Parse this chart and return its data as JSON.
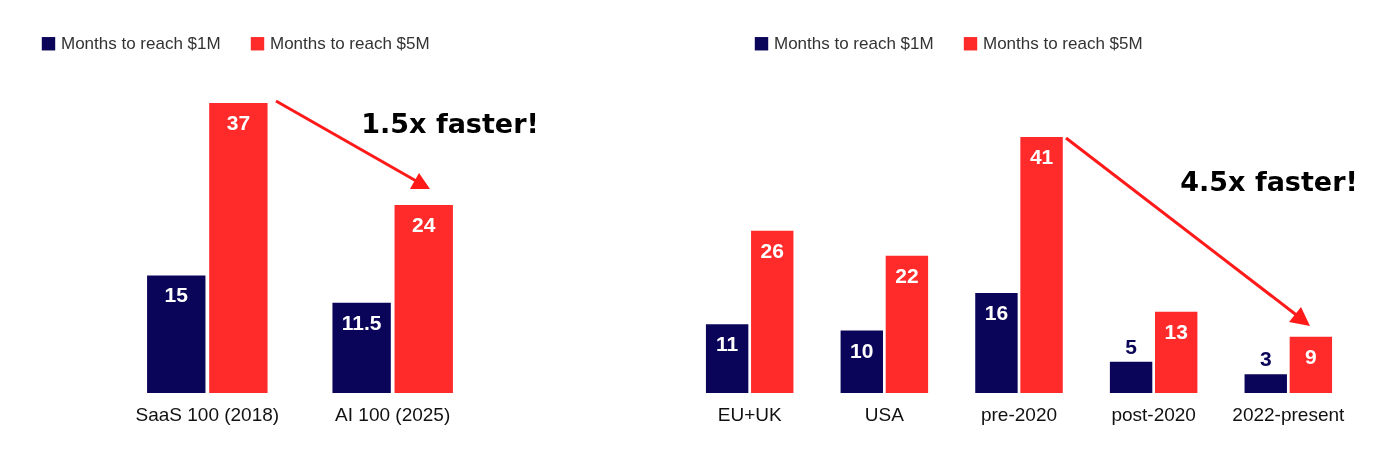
{
  "chart_data": [
    {
      "type": "bar",
      "categories": [
        "SaaS 100 (2018)",
        "AI 100 (2025)"
      ],
      "series": [
        {
          "name": "Months to reach $1M",
          "color": "#0b0559",
          "values": [
            15,
            11.5
          ]
        },
        {
          "name": "Months to reach $5M",
          "color": "#ff2b2b",
          "values": [
            37,
            24
          ]
        }
      ],
      "data_labels": true,
      "legend": "top left",
      "annotations": [
        "1.5x faster!"
      ]
    },
    {
      "type": "bar",
      "categories": [
        "EU+UK",
        "USA",
        "pre-2020",
        "post-2020",
        "2022-present"
      ],
      "series": [
        {
          "name": "Months to reach $1M",
          "color": "#0b0559",
          "values": [
            11,
            10,
            16,
            5,
            3
          ]
        },
        {
          "name": "Months to reach $5M",
          "color": "#ff2b2b",
          "values": [
            26,
            22,
            41,
            13,
            9
          ]
        }
      ],
      "data_labels": true,
      "legend": "top left",
      "annotations": [
        "4.5x faster!"
      ]
    }
  ]
}
